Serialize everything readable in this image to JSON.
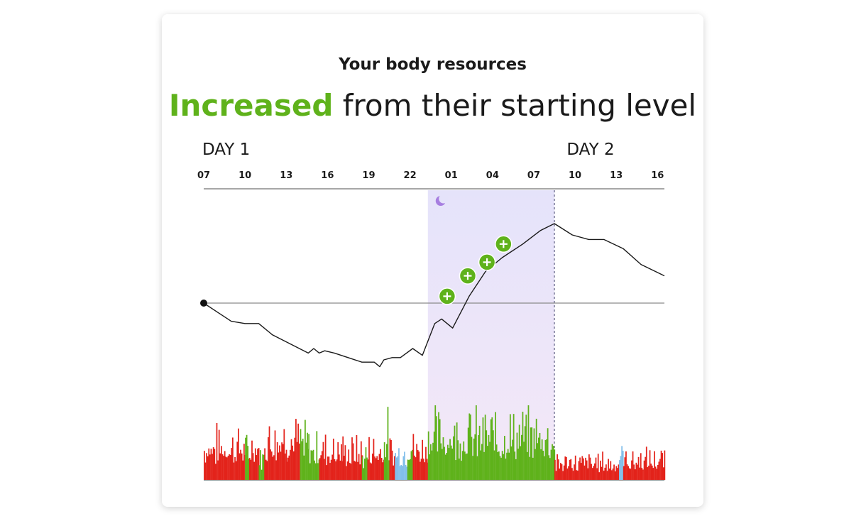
{
  "header": {
    "subtitle": "Your body resources",
    "title_accent": "Increased",
    "title_rest": " from their starting level"
  },
  "colors": {
    "accent": "#5fb21b",
    "stress": "#e3231b",
    "recovery": "#5fb21b",
    "activity": "#82bfea",
    "sleep_band_top": "#e5e3fa",
    "sleep_band_bottom": "#f4e8f8",
    "moon": "#a77ee0"
  },
  "chart_data": {
    "type": "line",
    "title": "",
    "day_labels": [
      {
        "label": "DAY 1",
        "hour": 7
      },
      {
        "label": "DAY 2",
        "hour": 33.5
      }
    ],
    "x_ticks": [
      "07",
      "10",
      "13",
      "16",
      "19",
      "22",
      "01",
      "04",
      "07",
      "10",
      "13",
      "16"
    ],
    "x_tick_hours": [
      7,
      10,
      13,
      16,
      19,
      22,
      25,
      28,
      31,
      34,
      37,
      40
    ],
    "xlim": [
      7,
      40.5
    ],
    "ylim": [
      -40,
      45
    ],
    "baseline": 0,
    "start_point": {
      "hour": 7,
      "value": 0
    },
    "sleep_period": {
      "start_hour": 23.3,
      "end_hour": 32.5,
      "icon": "moon-icon"
    },
    "day_boundary_hour": 32.5,
    "series": [
      {
        "x": [
          7,
          8,
          9,
          10,
          11,
          12,
          14.6,
          15,
          15.4,
          15.8,
          16.5,
          17.5,
          18.5,
          19.4,
          19.8,
          20.1,
          20.7,
          21.3,
          22.2,
          22.9,
          23.8,
          24.3,
          25.1,
          26.3,
          27.5,
          28.7,
          30.2,
          31.5,
          32.5,
          33.8,
          35.0,
          36.1,
          37.5,
          38.8,
          40.5
        ],
        "y": [
          0,
          -4,
          -8,
          -9,
          -9,
          -14,
          -22,
          -20,
          -22,
          -21,
          -22,
          -24,
          -26,
          -26,
          -28,
          -25,
          -24,
          -24,
          -20,
          -23,
          -9,
          -7,
          -11,
          3,
          14,
          20,
          26,
          32,
          35,
          30,
          28,
          28,
          24,
          17,
          12
        ]
      }
    ],
    "recovery_markers": [
      {
        "hour": 24.7,
        "value": 3,
        "icon": "plus-icon"
      },
      {
        "hour": 26.2,
        "value": 12,
        "icon": "plus-icon"
      },
      {
        "hour": 27.6,
        "value": 18,
        "icon": "plus-icon"
      },
      {
        "hour": 28.8,
        "value": 26,
        "icon": "plus-icon"
      }
    ],
    "activity_bars": {
      "segments": [
        {
          "start_hour": 7.0,
          "end_hour": 10.0,
          "state": "stress",
          "level": 0.55
        },
        {
          "start_hour": 10.0,
          "end_hour": 10.3,
          "state": "recovery",
          "level": 0.45
        },
        {
          "start_hour": 10.3,
          "end_hour": 11.0,
          "state": "stress",
          "level": 0.55
        },
        {
          "start_hour": 11.0,
          "end_hour": 11.4,
          "state": "recovery",
          "level": 0.35
        },
        {
          "start_hour": 11.4,
          "end_hour": 13.0,
          "state": "stress",
          "level": 0.7
        },
        {
          "start_hour": 13.0,
          "end_hour": 14.0,
          "state": "stress",
          "level": 0.65
        },
        {
          "start_hour": 14.0,
          "end_hour": 14.6,
          "state": "recovery",
          "level": 0.6
        },
        {
          "start_hour": 14.6,
          "end_hour": 15.4,
          "state": "recovery",
          "level": 0.5
        },
        {
          "start_hour": 15.4,
          "end_hour": 17.0,
          "state": "stress",
          "level": 0.5
        },
        {
          "start_hour": 17.0,
          "end_hour": 18.5,
          "state": "stress",
          "level": 0.45
        },
        {
          "start_hour": 18.5,
          "end_hour": 18.9,
          "state": "recovery",
          "level": 0.4
        },
        {
          "start_hour": 18.9,
          "end_hour": 20.1,
          "state": "stress",
          "level": 0.5
        },
        {
          "start_hour": 20.1,
          "end_hour": 20.5,
          "state": "recovery",
          "level": 0.7
        },
        {
          "start_hour": 20.5,
          "end_hour": 20.9,
          "state": "stress",
          "level": 0.45
        },
        {
          "start_hour": 20.9,
          "end_hour": 21.8,
          "state": "activity",
          "level": 0.45
        },
        {
          "start_hour": 21.8,
          "end_hour": 22.2,
          "state": "recovery",
          "level": 0.6
        },
        {
          "start_hour": 22.2,
          "end_hour": 23.3,
          "state": "stress",
          "level": 0.5
        },
        {
          "start_hour": 23.3,
          "end_hour": 32.5,
          "state": "recovery",
          "level": 0.72
        },
        {
          "start_hour": 32.5,
          "end_hour": 37.2,
          "state": "stress",
          "level": 0.28
        },
        {
          "start_hour": 37.2,
          "end_hour": 37.5,
          "state": "activity",
          "level": 0.4
        },
        {
          "start_hour": 37.5,
          "end_hour": 40.5,
          "state": "stress",
          "level": 0.32
        }
      ]
    }
  }
}
